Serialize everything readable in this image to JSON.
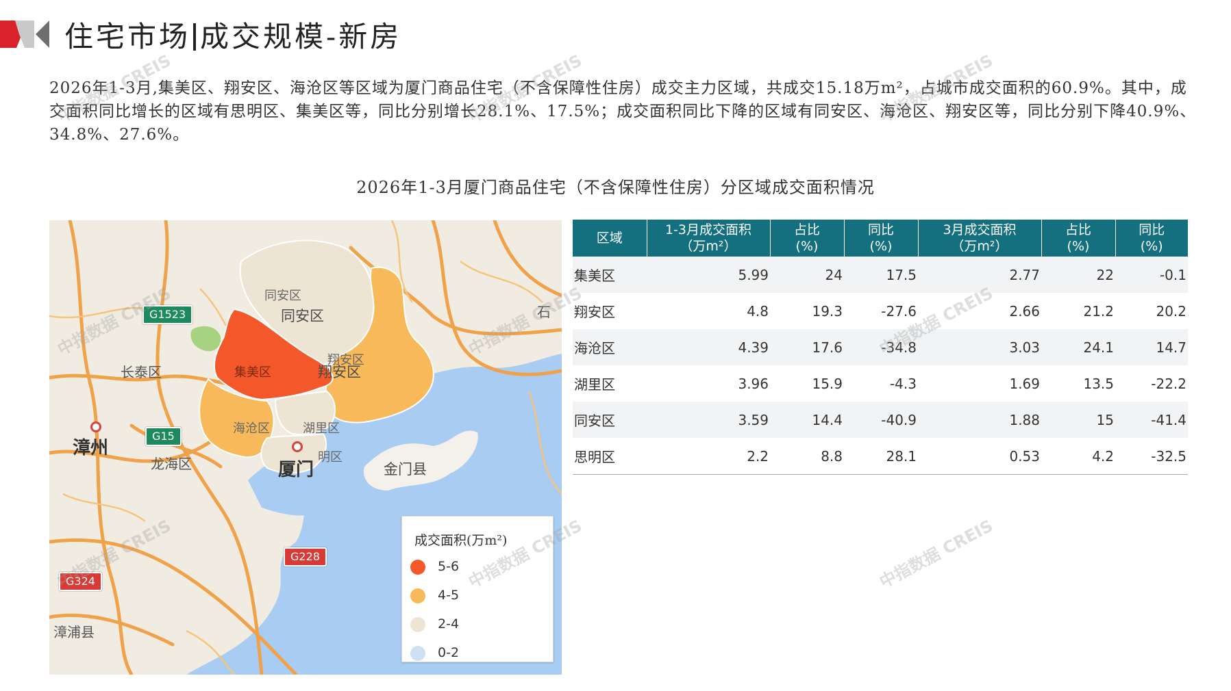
{
  "header": {
    "title_left": "住宅市场",
    "title_right": "成交规模-新房"
  },
  "intro": "2026年1-3月,集美区、翔安区、海沧区等区域为厦门商品住宅（不含保障性住房）成交主力区域，共成交15.18万m²，占城市成交面积的60.9%。其中，成交面积同比增长的区域有思明区、集美区等，同比分别增长28.1%、17.5%；成交面积同比下降的区域有同安区、海沧区、翔安区等，同比分别下降40.9%、34.8%、27.6%。",
  "chart_caption": "2026年1-3月厦门商品住宅（不含保障性住房）分区域成交面积情况",
  "watermark": "中指数据 CREIS",
  "map": {
    "labels": {
      "tongan_small": "同安区",
      "tongan": "同安区",
      "jimei": "集美区",
      "xiangan_small": "翔安区",
      "xiangan": "翔安区",
      "haicang": "海沧区",
      "huli": "湖里区",
      "siming": "明区",
      "xiamen": "厦门",
      "jinmen": "金门县",
      "zhangzhou": "漳州",
      "longhai": "龙海区",
      "changtai": "长泰区",
      "zhangpu": "漳浦县",
      "shi": "石"
    },
    "roads": [
      "G1523",
      "G15",
      "G228",
      "G324"
    ],
    "legend": {
      "title": "成交面积(万m²)",
      "items": [
        {
          "label": "5-6",
          "color": "#f4582a"
        },
        {
          "label": "4-5",
          "color": "#f7b95a"
        },
        {
          "label": "2-4",
          "color": "#eee4d4"
        },
        {
          "label": "0-2",
          "color": "#cfe0f2"
        }
      ]
    }
  },
  "table": {
    "headers": [
      [
        "区域"
      ],
      [
        "1-3月成交面积",
        "（万m²）"
      ],
      [
        "占比",
        "(%)"
      ],
      [
        "同比",
        "(%)"
      ],
      [
        "3月成交面积",
        "（万m²）"
      ],
      [
        "占比",
        "(%)"
      ],
      [
        "同比",
        "(%)"
      ]
    ],
    "rows": [
      [
        "集美区",
        "5.99",
        "24",
        "17.5",
        "2.77",
        "22",
        "-0.1"
      ],
      [
        "翔安区",
        "4.8",
        "19.3",
        "-27.6",
        "2.66",
        "21.2",
        "20.2"
      ],
      [
        "海沧区",
        "4.39",
        "17.6",
        "-34.8",
        "3.03",
        "24.1",
        "14.7"
      ],
      [
        "湖里区",
        "3.96",
        "15.9",
        "-4.3",
        "1.69",
        "13.5",
        "-22.2"
      ],
      [
        "同安区",
        "3.59",
        "14.4",
        "-40.9",
        "1.88",
        "15",
        "-41.4"
      ],
      [
        "思明区",
        "2.2",
        "8.8",
        "28.1",
        "0.53",
        "4.2",
        "-32.5"
      ]
    ]
  }
}
